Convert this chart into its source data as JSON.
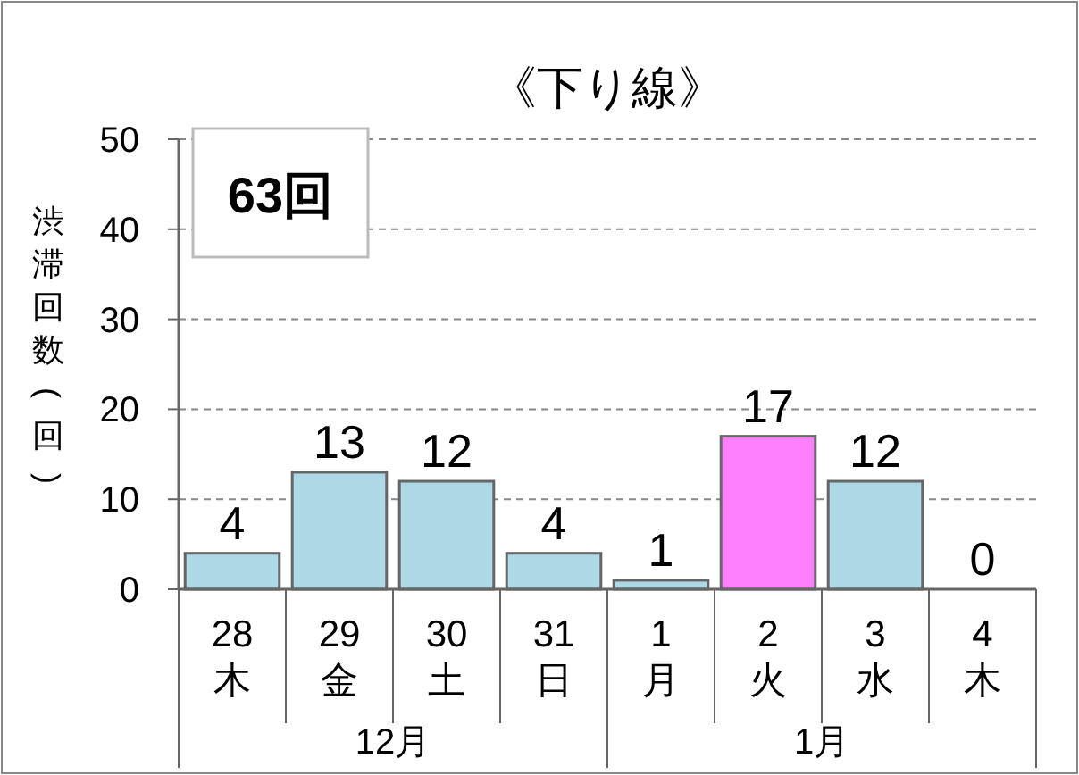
{
  "chart_data": {
    "type": "bar",
    "title": "《下り線》",
    "ylabel": "渋滞回数(回)",
    "categories": [
      "28 木",
      "29 金",
      "30 土",
      "31 日",
      "1 月",
      "2 火",
      "3 水",
      "4 木"
    ],
    "values": [
      4,
      13,
      12,
      4,
      1,
      17,
      12,
      0
    ],
    "colors": [
      "#add8e6",
      "#add8e6",
      "#add8e6",
      "#add8e6",
      "#add8e6",
      "#ff80ff",
      "#add8e6",
      "#add8e6"
    ],
    "ylim": [
      0,
      50
    ],
    "yticks": [
      0,
      10,
      20,
      30,
      40,
      50
    ],
    "grid": "y",
    "data_labels": true,
    "annotations": [
      "63回",
      "12月",
      "1月"
    ]
  }
}
